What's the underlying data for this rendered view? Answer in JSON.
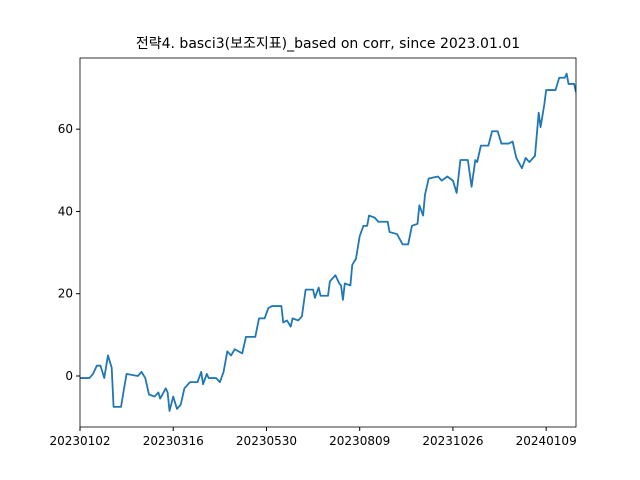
{
  "chart_data": {
    "type": "line",
    "title": "전략4. basci3(보조지표)_based on corr, since 2023.01.01",
    "x": [
      0,
      5,
      7,
      9,
      11,
      13,
      15,
      17,
      18,
      22,
      24,
      25,
      31,
      33,
      35,
      37,
      40,
      42,
      43,
      46,
      47,
      48,
      50,
      52,
      54,
      56,
      59,
      63,
      65,
      66,
      68,
      69,
      73,
      75,
      77,
      79,
      81,
      83,
      85,
      87,
      89,
      94,
      96,
      99,
      101,
      103,
      108,
      109,
      111,
      113,
      114,
      117,
      119,
      121,
      125,
      126,
      128,
      129,
      133,
      134,
      137,
      139,
      140,
      141,
      142,
      145,
      146,
      148,
      150,
      152,
      154,
      155,
      158,
      160,
      165,
      166,
      170,
      173,
      176,
      178,
      181,
      182,
      184,
      185,
      187,
      192,
      194,
      197,
      200,
      202,
      204,
      208,
      210,
      212,
      213,
      215,
      219,
      221,
      224,
      226,
      230,
      232,
      234,
      237,
      239,
      241,
      244,
      246,
      247,
      249,
      250,
      255,
      257,
      260,
      261,
      262,
      265,
      266
    ],
    "series": [
      {
        "color": "#1f77b4",
        "values": [
          -0.5,
          -0.5,
          0.5,
          2.5,
          2.5,
          -0.5,
          5,
          2,
          -7.5,
          -7.5,
          -2,
          0.5,
          0,
          1,
          -0.5,
          -4.5,
          -5,
          -4,
          -5.5,
          -3,
          -4,
          -8.5,
          -5,
          -8,
          -7,
          -3,
          -1.5,
          -1.5,
          1,
          -2,
          0.5,
          -0.5,
          -0.5,
          -1.5,
          1,
          6,
          5,
          6.5,
          6,
          5.5,
          9.5,
          9.5,
          14,
          14,
          16.5,
          17,
          17,
          13,
          13.5,
          12,
          14,
          13.5,
          14.5,
          21,
          21,
          19,
          21.5,
          19.5,
          19.5,
          23,
          24.5,
          22.5,
          22,
          18.5,
          22.5,
          22,
          27,
          28.5,
          34,
          36.5,
          36.5,
          39,
          38.5,
          37.5,
          37.5,
          35,
          34.5,
          32,
          32,
          36.5,
          37,
          41.5,
          39,
          44,
          48,
          48.5,
          47.5,
          48.5,
          47.5,
          44.5,
          52.5,
          52.5,
          46,
          52.5,
          52,
          56,
          56,
          59.5,
          59.5,
          56.5,
          56.5,
          57,
          53,
          50.5,
          53,
          52,
          53.5,
          64,
          60.5,
          66,
          69.5,
          69.5,
          72.5,
          72.5,
          73.5,
          71,
          71,
          69
        ]
      }
    ],
    "xlim": [
      0,
      266
    ],
    "xticks": [
      {
        "value": 0,
        "label": "20230102"
      },
      {
        "value": 50,
        "label": "20230316"
      },
      {
        "value": 100,
        "label": "20230530"
      },
      {
        "value": 150,
        "label": "20230809"
      },
      {
        "value": 200,
        "label": "20231026"
      },
      {
        "value": 250,
        "label": "20240109"
      }
    ],
    "ylim": [
      -12.4,
      77.3
    ],
    "yticks": [
      0,
      20,
      40,
      60
    ]
  }
}
